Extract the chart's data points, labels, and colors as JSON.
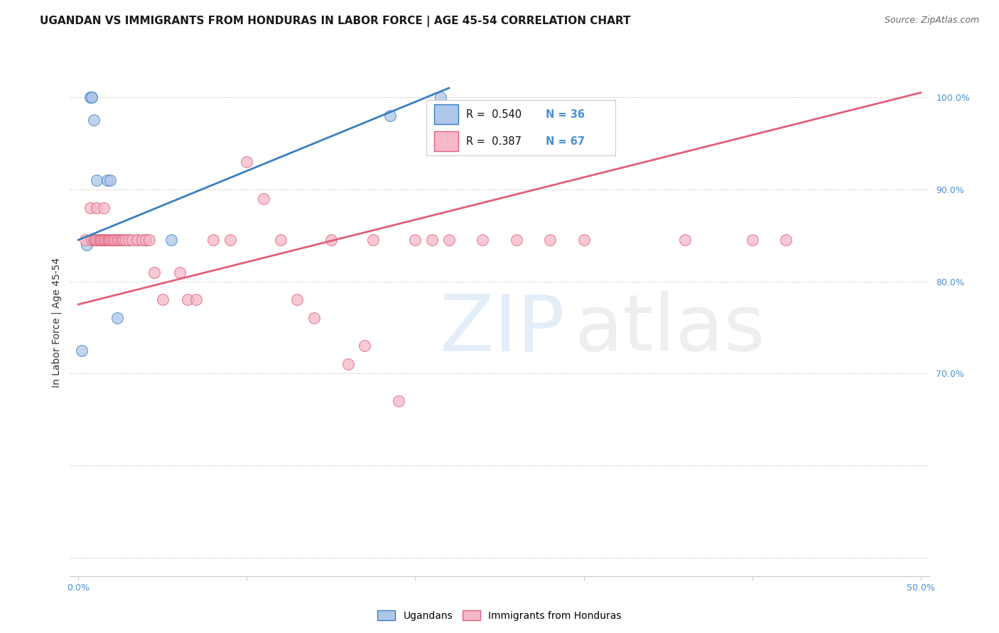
{
  "title": "UGANDAN VS IMMIGRANTS FROM HONDURAS IN LABOR FORCE | AGE 45-54 CORRELATION CHART",
  "source": "Source: ZipAtlas.com",
  "ylabel": "In Labor Force | Age 45-54",
  "xlim": [
    -0.005,
    0.505
  ],
  "ylim": [
    0.48,
    1.03
  ],
  "xticks": [
    0.0,
    0.1,
    0.2,
    0.3,
    0.4,
    0.5
  ],
  "xticklabels": [
    "0.0%",
    "",
    "",
    "",
    "",
    "50.0%"
  ],
  "yticks": [
    0.5,
    0.6,
    0.7,
    0.8,
    0.9,
    1.0
  ],
  "yticklabels": [
    "",
    "",
    "70.0%",
    "80.0%",
    "90.0%",
    "100.0%"
  ],
  "legend_r_blue": "0.540",
  "legend_n_blue": "36",
  "legend_r_pink": "0.387",
  "legend_n_pink": "67",
  "blue_color": "#aec6e8",
  "pink_color": "#f5b8c8",
  "blue_line_color": "#3a7fc1",
  "pink_line_color": "#e0607a",
  "label_color": "#4a90d9",
  "ugandan_x": [
    0.002,
    0.005,
    0.007,
    0.008,
    0.008,
    0.009,
    0.009,
    0.01,
    0.01,
    0.011,
    0.012,
    0.012,
    0.013,
    0.013,
    0.014,
    0.014,
    0.015,
    0.015,
    0.016,
    0.016,
    0.017,
    0.018,
    0.018,
    0.019,
    0.02,
    0.021,
    0.022,
    0.023,
    0.025,
    0.027,
    0.03,
    0.035,
    0.04,
    0.055,
    0.185,
    0.215
  ],
  "ugandan_y": [
    0.725,
    0.84,
    1.0,
    1.0,
    1.0,
    0.975,
    0.845,
    0.845,
    0.845,
    0.91,
    0.845,
    0.845,
    0.845,
    0.845,
    0.845,
    0.845,
    0.845,
    0.845,
    0.845,
    0.845,
    0.91,
    0.845,
    0.845,
    0.91,
    0.845,
    0.845,
    0.845,
    0.76,
    0.845,
    0.845,
    0.845,
    0.845,
    0.845,
    0.845,
    0.98,
    1.0
  ],
  "honduras_x": [
    0.004,
    0.007,
    0.008,
    0.009,
    0.01,
    0.01,
    0.011,
    0.011,
    0.012,
    0.013,
    0.013,
    0.014,
    0.014,
    0.015,
    0.015,
    0.015,
    0.016,
    0.016,
    0.017,
    0.017,
    0.018,
    0.018,
    0.019,
    0.019,
    0.02,
    0.02,
    0.021,
    0.022,
    0.023,
    0.024,
    0.025,
    0.026,
    0.027,
    0.028,
    0.03,
    0.032,
    0.035,
    0.038,
    0.04,
    0.042,
    0.045,
    0.05,
    0.06,
    0.065,
    0.07,
    0.08,
    0.09,
    0.1,
    0.11,
    0.12,
    0.13,
    0.14,
    0.15,
    0.16,
    0.17,
    0.175,
    0.19,
    0.2,
    0.21,
    0.22,
    0.24,
    0.26,
    0.28,
    0.3,
    0.36,
    0.4,
    0.42
  ],
  "honduras_y": [
    0.845,
    0.88,
    0.845,
    0.845,
    0.845,
    0.845,
    0.88,
    0.845,
    0.845,
    0.845,
    0.845,
    0.845,
    0.845,
    0.88,
    0.845,
    0.845,
    0.845,
    0.845,
    0.845,
    0.845,
    0.845,
    0.845,
    0.845,
    0.845,
    0.845,
    0.845,
    0.845,
    0.845,
    0.845,
    0.845,
    0.845,
    0.845,
    0.845,
    0.845,
    0.845,
    0.845,
    0.845,
    0.845,
    0.845,
    0.845,
    0.81,
    0.78,
    0.81,
    0.78,
    0.78,
    0.845,
    0.845,
    0.93,
    0.89,
    0.845,
    0.78,
    0.76,
    0.845,
    0.71,
    0.73,
    0.845,
    0.67,
    0.845,
    0.845,
    0.845,
    0.845,
    0.845,
    0.845,
    0.845,
    0.845,
    0.845,
    0.845
  ],
  "blue_line_x": [
    0.0,
    0.22
  ],
  "blue_line_y": [
    0.845,
    1.01
  ],
  "pink_line_x": [
    0.0,
    0.5
  ],
  "pink_line_y": [
    0.775,
    1.005
  ],
  "title_fontsize": 11,
  "tick_fontsize": 9,
  "source_fontsize": 9
}
